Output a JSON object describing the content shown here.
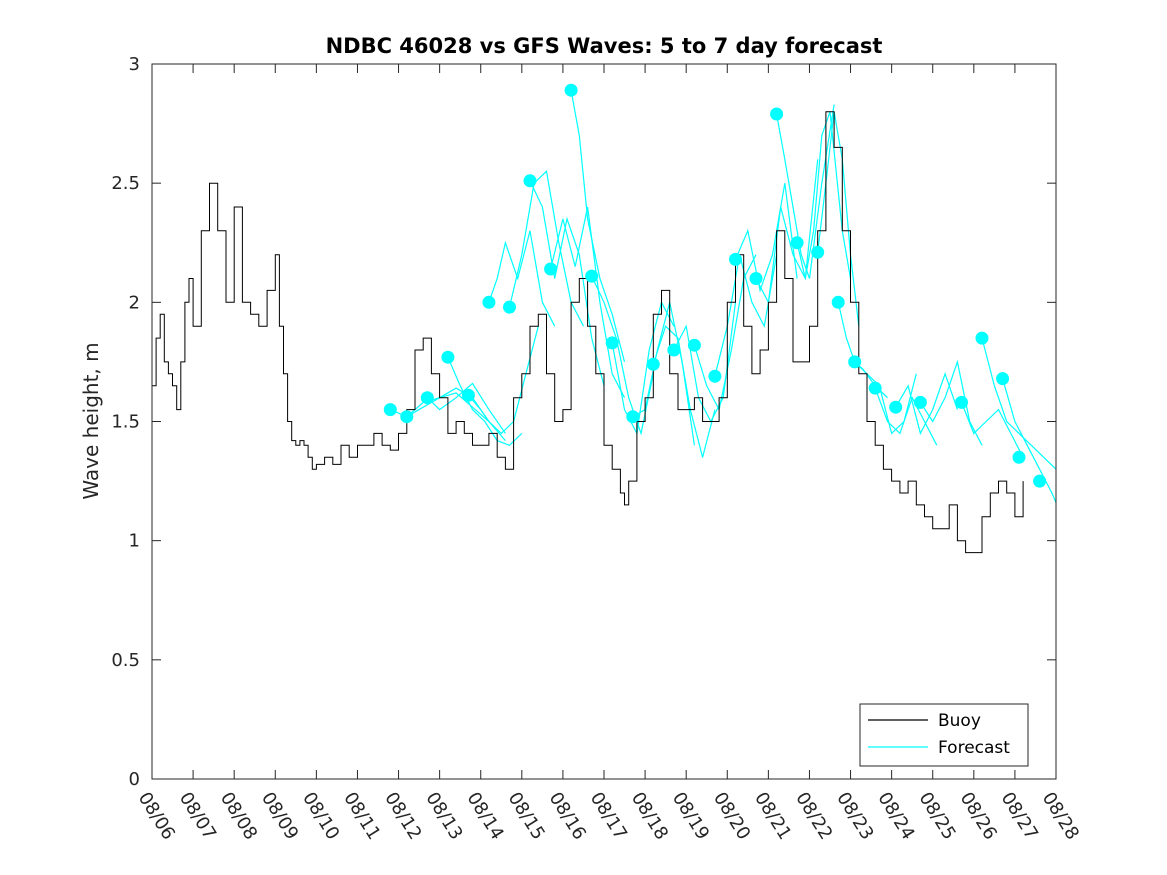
{
  "chart_data": {
    "type": "line",
    "title": "NDBC 46028 vs GFS Waves: 5 to 7 day forecast",
    "xlabel": "",
    "ylabel": "Wave height, m",
    "xlim": [
      0,
      22
    ],
    "ylim": [
      0,
      3
    ],
    "yticks": [
      0,
      0.5,
      1,
      1.5,
      2,
      2.5,
      3
    ],
    "ytick_labels": [
      "0",
      "0.5",
      "1",
      "1.5",
      "2",
      "2.5",
      "3"
    ],
    "xticks": [
      0,
      1,
      2,
      3,
      4,
      5,
      6,
      7,
      8,
      9,
      10,
      11,
      12,
      13,
      14,
      15,
      16,
      17,
      18,
      19,
      20,
      21,
      22
    ],
    "xtick_labels": [
      "08/06",
      "08/07",
      "08/08",
      "08/09",
      "08/10",
      "08/11",
      "08/12",
      "08/13",
      "08/14",
      "08/15",
      "08/16",
      "08/17",
      "08/18",
      "08/19",
      "08/20",
      "08/21",
      "08/22",
      "08/23",
      "08/24",
      "08/25",
      "08/26",
      "08/27",
      "08/28"
    ],
    "grid": false,
    "legend_position": "bottom-right",
    "colors": {
      "buoy": "#000000",
      "forecast": "#00ffff"
    },
    "series": [
      {
        "name": "Buoy",
        "x": [
          0,
          0.1,
          0.2,
          0.3,
          0.4,
          0.5,
          0.6,
          0.7,
          0.8,
          0.9,
          1.0,
          1.2,
          1.4,
          1.6,
          1.8,
          2.0,
          2.2,
          2.4,
          2.6,
          2.8,
          3.0,
          3.1,
          3.2,
          3.3,
          3.4,
          3.5,
          3.6,
          3.7,
          3.8,
          3.9,
          4.0,
          4.2,
          4.4,
          4.6,
          4.8,
          5.0,
          5.2,
          5.4,
          5.6,
          5.8,
          6.0,
          6.2,
          6.4,
          6.6,
          6.8,
          7.0,
          7.2,
          7.4,
          7.6,
          7.8,
          8.0,
          8.2,
          8.4,
          8.6,
          8.8,
          9.0,
          9.2,
          9.4,
          9.6,
          9.8,
          10.0,
          10.2,
          10.4,
          10.6,
          10.8,
          11.0,
          11.2,
          11.4,
          11.5,
          11.6,
          11.8,
          12.0,
          12.2,
          12.4,
          12.6,
          12.8,
          13.0,
          13.2,
          13.4,
          13.6,
          13.8,
          14.0,
          14.2,
          14.4,
          14.6,
          14.8,
          15.0,
          15.2,
          15.4,
          15.6,
          15.8,
          16.0,
          16.2,
          16.4,
          16.6,
          16.8,
          17.0,
          17.2,
          17.4,
          17.6,
          17.8,
          18.0,
          18.2,
          18.4,
          18.6,
          18.8,
          19.0,
          19.2,
          19.4,
          19.6,
          19.8,
          20.0,
          20.2,
          20.4,
          20.6,
          20.8,
          21.0,
          21.2
        ],
        "y": [
          1.65,
          1.85,
          1.95,
          1.75,
          1.7,
          1.65,
          1.55,
          1.75,
          2.0,
          2.1,
          1.9,
          2.3,
          2.5,
          2.3,
          2.0,
          2.4,
          2.0,
          1.95,
          1.9,
          2.05,
          2.2,
          1.9,
          1.7,
          1.5,
          1.42,
          1.4,
          1.42,
          1.4,
          1.35,
          1.3,
          1.32,
          1.35,
          1.32,
          1.4,
          1.35,
          1.4,
          1.4,
          1.45,
          1.4,
          1.38,
          1.45,
          1.55,
          1.8,
          1.85,
          1.7,
          1.6,
          1.45,
          1.5,
          1.45,
          1.4,
          1.4,
          1.45,
          1.35,
          1.3,
          1.6,
          1.7,
          1.9,
          1.95,
          1.7,
          1.5,
          1.55,
          2.0,
          2.1,
          1.9,
          1.7,
          1.4,
          1.3,
          1.2,
          1.15,
          1.25,
          1.5,
          1.6,
          1.95,
          2.05,
          1.7,
          1.55,
          1.55,
          1.6,
          1.5,
          1.5,
          1.6,
          2.0,
          2.2,
          1.9,
          1.7,
          1.8,
          2.0,
          2.3,
          2.1,
          1.75,
          1.75,
          1.9,
          2.3,
          2.8,
          2.65,
          2.3,
          2.0,
          1.7,
          1.5,
          1.4,
          1.3,
          1.25,
          1.2,
          1.25,
          1.15,
          1.1,
          1.05,
          1.05,
          1.15,
          1.0,
          0.95,
          0.95,
          1.1,
          1.2,
          1.25,
          1.2,
          1.1,
          1.25
        ],
        "note": "approximate trace read from plot"
      },
      {
        "name": "Forecast",
        "segments": [
          {
            "x": [
              5.8,
              6.2,
              6.6,
              7.0,
              7.4,
              7.8,
              8.2
            ],
            "y": [
              1.55,
              1.52,
              1.58,
              1.6,
              1.62,
              1.56,
              1.5
            ]
          },
          {
            "x": [
              6.2,
              6.6,
              7.0,
              7.4,
              7.8,
              8.2,
              8.6
            ],
            "y": [
              1.52,
              1.56,
              1.6,
              1.64,
              1.6,
              1.5,
              1.42
            ]
          },
          {
            "x": [
              6.7,
              7.0,
              7.4,
              7.8,
              8.2,
              8.6
            ],
            "y": [
              1.6,
              1.55,
              1.6,
              1.66,
              1.55,
              1.45
            ]
          },
          {
            "x": [
              7.2,
              7.5,
              7.8,
              8.1,
              8.4,
              8.7,
              9.0
            ],
            "y": [
              1.77,
              1.65,
              1.55,
              1.5,
              1.42,
              1.4,
              1.45
            ]
          },
          {
            "x": [
              7.7,
              8.0,
              8.2,
              8.5,
              8.8,
              9.1,
              9.4
            ],
            "y": [
              1.61,
              1.55,
              1.5,
              1.45,
              1.5,
              1.7,
              1.9
            ]
          },
          {
            "x": [
              8.2,
              8.4,
              8.6,
              8.9,
              9.2,
              9.5,
              9.8
            ],
            "y": [
              2.0,
              2.1,
              2.25,
              2.1,
              2.3,
              2.0,
              1.9
            ]
          },
          {
            "x": [
              8.7,
              9.0,
              9.3,
              9.6,
              9.9,
              10.2,
              10.5
            ],
            "y": [
              1.98,
              2.2,
              2.5,
              2.55,
              2.25,
              2.0,
              1.9
            ]
          },
          {
            "x": [
              9.2,
              9.5,
              9.8,
              10.1,
              10.4,
              10.7,
              11.0
            ],
            "y": [
              2.51,
              2.4,
              2.1,
              2.35,
              2.2,
              1.85,
              1.65
            ]
          },
          {
            "x": [
              9.7,
              10.0,
              10.3,
              10.6,
              10.9,
              11.2,
              11.5
            ],
            "y": [
              2.14,
              2.35,
              2.15,
              2.4,
              2.0,
              1.7,
              1.6
            ]
          },
          {
            "x": [
              10.2,
              10.4,
              10.6,
              10.9,
              11.2,
              11.5
            ],
            "y": [
              2.89,
              2.7,
              2.35,
              2.1,
              1.95,
              1.75
            ]
          },
          {
            "x": [
              10.7,
              11.0,
              11.3,
              11.6,
              11.9,
              12.2
            ],
            "y": [
              2.11,
              2.0,
              1.85,
              1.6,
              1.45,
              1.7
            ]
          },
          {
            "x": [
              11.2,
              11.5,
              11.8,
              12.1,
              12.4,
              12.7
            ],
            "y": [
              1.83,
              1.55,
              1.45,
              1.8,
              2.0,
              1.9
            ]
          },
          {
            "x": [
              11.7,
              12.0,
              12.3,
              12.6,
              12.9,
              13.2
            ],
            "y": [
              1.52,
              1.55,
              1.8,
              2.0,
              1.75,
              1.4
            ]
          },
          {
            "x": [
              12.2,
              12.5,
              12.8,
              13.1,
              13.4,
              13.7
            ],
            "y": [
              1.74,
              1.9,
              1.85,
              1.55,
              1.35,
              1.55
            ]
          },
          {
            "x": [
              12.7,
              13.0,
              13.3,
              13.6,
              13.9,
              14.2
            ],
            "y": [
              1.8,
              1.9,
              1.6,
              1.5,
              1.6,
              2.0
            ]
          },
          {
            "x": [
              13.2,
              13.5,
              13.8,
              14.1,
              14.4,
              14.7
            ],
            "y": [
              1.82,
              1.65,
              1.55,
              1.8,
              2.1,
              2.2
            ]
          },
          {
            "x": [
              13.7,
              14.0,
              14.3,
              14.6,
              14.9,
              15.2
            ],
            "y": [
              1.69,
              1.9,
              2.2,
              2.0,
              1.9,
              2.2
            ]
          },
          {
            "x": [
              14.2,
              14.5,
              14.8,
              15.1,
              15.4,
              15.7
            ],
            "y": [
              2.18,
              2.3,
              2.05,
              2.2,
              2.5,
              2.1
            ]
          },
          {
            "x": [
              14.7,
              15.0,
              15.3,
              15.6,
              15.9,
              16.2
            ],
            "y": [
              2.1,
              2.0,
              2.4,
              2.2,
              2.1,
              2.6
            ]
          },
          {
            "x": [
              15.2,
              15.4,
              15.6,
              15.8,
              16.0,
              16.3,
              16.6
            ],
            "y": [
              2.79,
              2.6,
              2.4,
              2.2,
              2.1,
              2.5,
              2.83
            ]
          },
          {
            "x": [
              15.7,
              15.9,
              16.1,
              16.3,
              16.5,
              16.8,
              17.0
            ],
            "y": [
              2.25,
              2.1,
              2.3,
              2.7,
              2.8,
              2.3,
              2.1
            ]
          },
          {
            "x": [
              16.2,
              16.4,
              16.6,
              16.8,
              17.0,
              17.2
            ],
            "y": [
              2.21,
              2.5,
              2.8,
              2.6,
              2.2,
              1.9
            ]
          },
          {
            "x": [
              16.7,
              16.9,
              17.1,
              17.3,
              17.6,
              17.9
            ],
            "y": [
              2.0,
              1.85,
              1.75,
              1.72,
              1.65,
              1.6
            ]
          },
          {
            "x": [
              17.1,
              17.4,
              17.7,
              18.0,
              18.3,
              18.6
            ],
            "y": [
              1.75,
              1.7,
              1.65,
              1.45,
              1.5,
              1.7
            ]
          },
          {
            "x": [
              17.6,
              17.9,
              18.2,
              18.5,
              18.8,
              19.1
            ],
            "y": [
              1.64,
              1.5,
              1.45,
              1.6,
              1.5,
              1.4
            ]
          },
          {
            "x": [
              18.1,
              18.4,
              18.7,
              19.0,
              19.3,
              19.6
            ],
            "y": [
              1.56,
              1.65,
              1.45,
              1.55,
              1.7,
              1.55
            ]
          },
          {
            "x": [
              18.7,
              19.0,
              19.3,
              19.6,
              19.9,
              20.2
            ],
            "y": [
              1.58,
              1.5,
              1.6,
              1.75,
              1.5,
              1.4
            ]
          },
          {
            "x": [
              19.7,
              20.0,
              20.3,
              20.6,
              20.9,
              21.2
            ],
            "y": [
              1.58,
              1.45,
              1.5,
              1.55,
              1.45,
              1.35
            ]
          },
          {
            "x": [
              20.2,
              20.5,
              20.8,
              21.1,
              21.4,
              21.7,
              22.0
            ],
            "y": [
              1.85,
              1.65,
              1.5,
              1.45,
              1.4,
              1.35,
              1.3
            ]
          },
          {
            "x": [
              20.7,
              21.0,
              21.3,
              21.6,
              21.9,
              22.0
            ],
            "y": [
              1.68,
              1.5,
              1.4,
              1.3,
              1.2,
              1.16
            ]
          }
        ],
        "markers": {
          "x": [
            5.8,
            6.2,
            6.7,
            7.2,
            7.7,
            8.2,
            8.7,
            9.2,
            9.7,
            10.2,
            10.7,
            11.2,
            11.7,
            12.2,
            12.7,
            13.2,
            13.7,
            14.2,
            14.7,
            15.2,
            15.7,
            16.2,
            16.7,
            17.1,
            17.6,
            18.1,
            18.7,
            19.7,
            20.2,
            20.7,
            21.1,
            21.6
          ],
          "y": [
            1.55,
            1.52,
            1.6,
            1.77,
            1.61,
            2.0,
            1.98,
            2.51,
            2.14,
            2.89,
            2.11,
            1.83,
            1.52,
            1.74,
            1.8,
            1.82,
            1.69,
            2.18,
            2.1,
            2.79,
            2.25,
            2.21,
            2.0,
            1.75,
            1.64,
            1.56,
            1.58,
            1.58,
            1.85,
            1.68,
            1.35,
            1.25
          ]
        }
      }
    ],
    "legend": [
      "Buoy",
      "Forecast"
    ]
  }
}
